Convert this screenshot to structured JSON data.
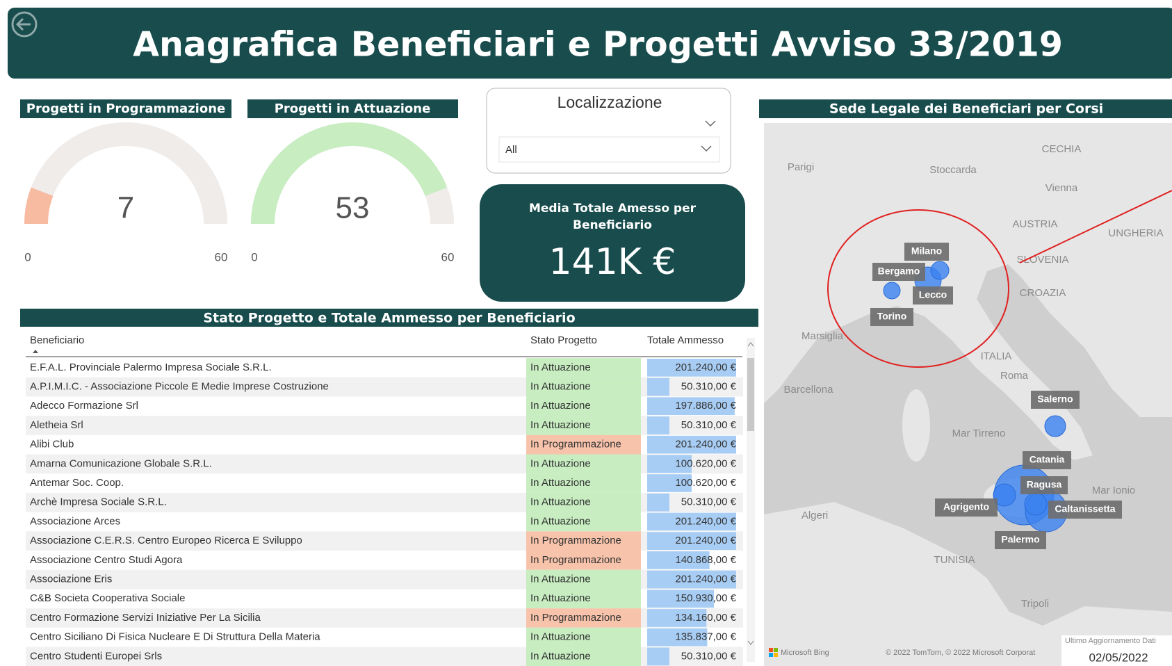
{
  "header": {
    "title": "Anagrafica Beneficiari e Progetti Avviso 33/2019"
  },
  "gauges": [
    {
      "title": "Progetti in Programmazione",
      "value": 7,
      "min": 0,
      "max": 60,
      "color": "#f7bba1",
      "track": "#efecea"
    },
    {
      "title": "Progetti in Attuazione",
      "value": 53,
      "min": 0,
      "max": 60,
      "color": "#c7edc1",
      "track": "#efecea"
    }
  ],
  "slicer": {
    "title": "Localizzazione",
    "selected": "All"
  },
  "card": {
    "title": "Media Totale Amesso per Beneficiario",
    "value": "141K €"
  },
  "table": {
    "title": "Stato Progetto e Totale Ammesso per Beneficiario",
    "columns": [
      "Beneficiario",
      "Stato Progetto",
      "Totale Ammesso"
    ],
    "bar_color": "#a8cdf4",
    "rows": [
      {
        "cells": [
          "E.F.A.L. Provinciale Palermo Impresa Sociale S.R.L.",
          "In Attuazione"
        ],
        "value": 201240,
        "value_label": "201.240,00 €",
        "stato_color": "#c7edc1"
      },
      {
        "cells": [
          "A.P.I.M.I.C. - Associazione Piccole E Medie Imprese Costruzione",
          "In Attuazione"
        ],
        "value": 50310,
        "value_label": "50.310,00 €",
        "stato_color": "#c7edc1"
      },
      {
        "cells": [
          "Adecco Formazione Srl",
          "In Attuazione"
        ],
        "value": 197886,
        "value_label": "197.886,00 €",
        "stato_color": "#c7edc1"
      },
      {
        "cells": [
          "Aletheia Srl",
          "In Attuazione"
        ],
        "value": 50310,
        "value_label": "50.310,00 €",
        "stato_color": "#c7edc1"
      },
      {
        "cells": [
          "Alibi Club",
          "In Programmazione"
        ],
        "value": 201240,
        "value_label": "201.240,00 €",
        "stato_color": "#f8c3ab"
      },
      {
        "cells": [
          "Amarna Comunicazione Globale S.R.L.",
          "In Attuazione"
        ],
        "value": 100620,
        "value_label": "100.620,00 €",
        "stato_color": "#c7edc1"
      },
      {
        "cells": [
          "Antemar Soc. Coop.",
          "In Attuazione"
        ],
        "value": 100620,
        "value_label": "100.620,00 €",
        "stato_color": "#c7edc1"
      },
      {
        "cells": [
          "Archè Impresa Sociale S.R.L.",
          "In Attuazione"
        ],
        "value": 50310,
        "value_label": "50.310,00 €",
        "stato_color": "#c7edc1"
      },
      {
        "cells": [
          "Associazione Arces",
          "In Attuazione"
        ],
        "value": 201240,
        "value_label": "201.240,00 €",
        "stato_color": "#c7edc1"
      },
      {
        "cells": [
          "Associazione C.E.R.S. Centro Europeo Ricerca E Sviluppo",
          "In Programmazione"
        ],
        "value": 201240,
        "value_label": "201.240,00 €",
        "stato_color": "#f8c3ab"
      },
      {
        "cells": [
          "Associazione Centro Studi Agora",
          "In Programmazione"
        ],
        "value": 140868,
        "value_label": "140.868,00 €",
        "stato_color": "#f8c3ab"
      },
      {
        "cells": [
          "Associazione Eris",
          "In Attuazione"
        ],
        "value": 201240,
        "value_label": "201.240,00 €",
        "stato_color": "#c7edc1"
      },
      {
        "cells": [
          "C&B Societa Cooperativa Sociale",
          "In Attuazione"
        ],
        "value": 150930,
        "value_label": "150.930,00 €",
        "stato_color": "#c7edc1"
      },
      {
        "cells": [
          "Centro Formazione Servizi Iniziative Per La Sicilia",
          "In Programmazione"
        ],
        "value": 134160,
        "value_label": "134.160,00 €",
        "stato_color": "#f8c3ab"
      },
      {
        "cells": [
          "Centro Siciliano Di Fisica Nucleare E Di Struttura Della Materia",
          "In Attuazione"
        ],
        "value": 135837,
        "value_label": "135.837,00 €",
        "stato_color": "#c7edc1"
      },
      {
        "cells": [
          "Centro Studenti Europei Srls",
          "In Attuazione"
        ],
        "value": 50310,
        "value_label": "50.310,00 €",
        "stato_color": "#c7edc1"
      }
    ]
  },
  "map": {
    "title": "Sede Legale dei Beneficiari per Corsi",
    "places": [
      "CECHIA",
      "AUSTRIA",
      "SLOVENIA",
      "CROAZIA",
      "ITALIA",
      "TUNISIA",
      "UNGHERIA",
      "Parigi",
      "Stoccarda",
      "Vienna",
      "Marsiglia",
      "Roma",
      "Barcellona",
      "Mar Tirreno",
      "Mar Ionio",
      "Algeri",
      "Tripoli"
    ],
    "cities": [
      "Milano",
      "Bergamo",
      "Lecco",
      "Torino",
      "Salerno",
      "Catania",
      "Ragusa",
      "Agrigento",
      "Caltanissetta",
      "Palermo"
    ],
    "attribution": [
      "Microsoft Bing",
      "© 2022 TomTom, © 2022 Microsoft Corporat"
    ]
  },
  "update": {
    "label": "Ultimo Aggiornamento Dati",
    "date": "02/05/2022"
  }
}
